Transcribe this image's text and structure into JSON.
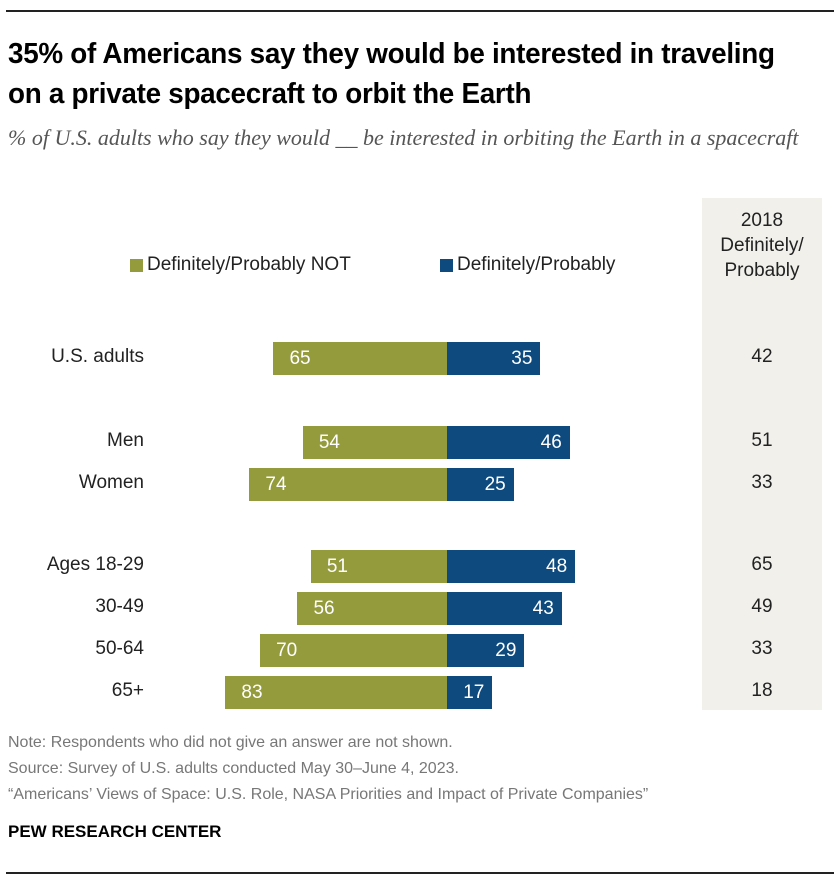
{
  "title": "35% of Americans say they would be interested in traveling on a private spacecraft to orbit the Earth",
  "subtitle": "% of U.S. adults who say they would __ be interested in orbiting the Earth in a spacecraft",
  "column_2018_header": "2018 Definitely/ Probably",
  "notes": [
    "Note: Respondents who did not give an answer are not shown.",
    "Source: Survey of U.S. adults conducted May 30–June 4, 2023.",
    "“Americans’ Views of Space: U.S. Role, NASA Priorities and Impact of Private Companies”"
  ],
  "brand": "PEW RESEARCH CENTER",
  "colors": {
    "not": "#949b3c",
    "yes": "#0e4a7e",
    "column_bg": "#f1f0eb"
  },
  "chart_data": {
    "type": "bar",
    "orientation": "horizontal-diverging",
    "categories": [
      "U.S. adults",
      "Men",
      "Women",
      "Ages 18-29",
      "30-49",
      "50-64",
      "65+"
    ],
    "series": [
      {
        "name": "Definitely/Probably NOT",
        "values": [
          65,
          54,
          74,
          51,
          56,
          70,
          83
        ]
      },
      {
        "name": "Definitely/Probably",
        "values": [
          35,
          46,
          25,
          48,
          43,
          29,
          17
        ]
      }
    ],
    "values_2018": [
      42,
      51,
      33,
      65,
      49,
      33,
      18
    ],
    "legend": "top"
  }
}
